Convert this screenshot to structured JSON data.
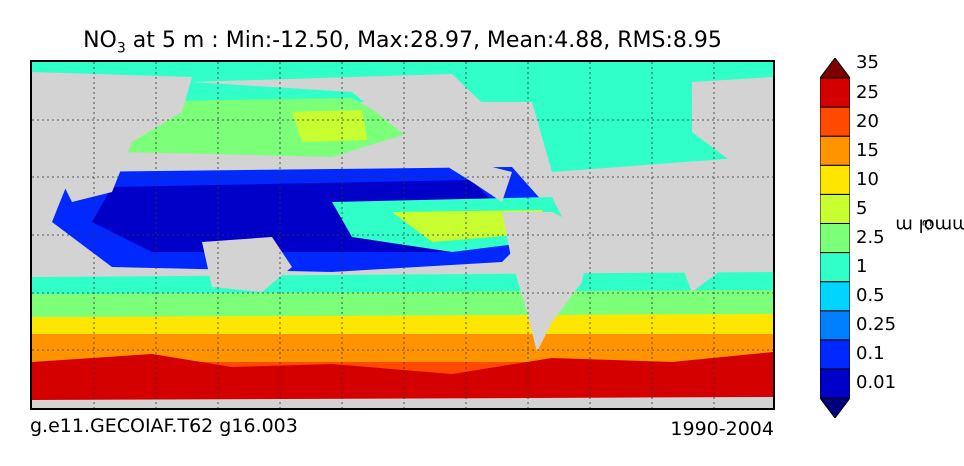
{
  "title": {
    "species": "NO",
    "subscript": "3",
    "rest": " at 5 m : Min:-12.50, Max:28.97, Mean:4.88, RMS:8.95"
  },
  "footer": {
    "case_name": "g.e11.GECOIAF.T62 g16.003",
    "years": "1990-2004"
  },
  "colorbar": {
    "unit_base": "mmol m",
    "unit_exponent": "-3",
    "tick_labels": [
      "0.01",
      "0.1",
      "0.25",
      "0.5",
      "1",
      "2.5",
      "5",
      "10",
      "15",
      "20",
      "25",
      "35"
    ],
    "colors": [
      "#00007f",
      "#0000c8",
      "#0028ff",
      "#0080ff",
      "#00d4ff",
      "#30ffc8",
      "#7cff79",
      "#c8ff30",
      "#ffe600",
      "#ff9400",
      "#ff4a00",
      "#d40000",
      "#7f0000"
    ]
  },
  "chart_data": {
    "type": "heatmap",
    "variable": "NO3",
    "depth": "5 m",
    "stats": {
      "min": -12.5,
      "max": 28.97,
      "mean": 4.88,
      "rms": 8.95
    },
    "levels": [
      0.01,
      0.1,
      0.25,
      0.5,
      1,
      2.5,
      5,
      10,
      15,
      20,
      25,
      35
    ],
    "extend": "both",
    "land_color": "#d3d3d3",
    "grid": true
  }
}
